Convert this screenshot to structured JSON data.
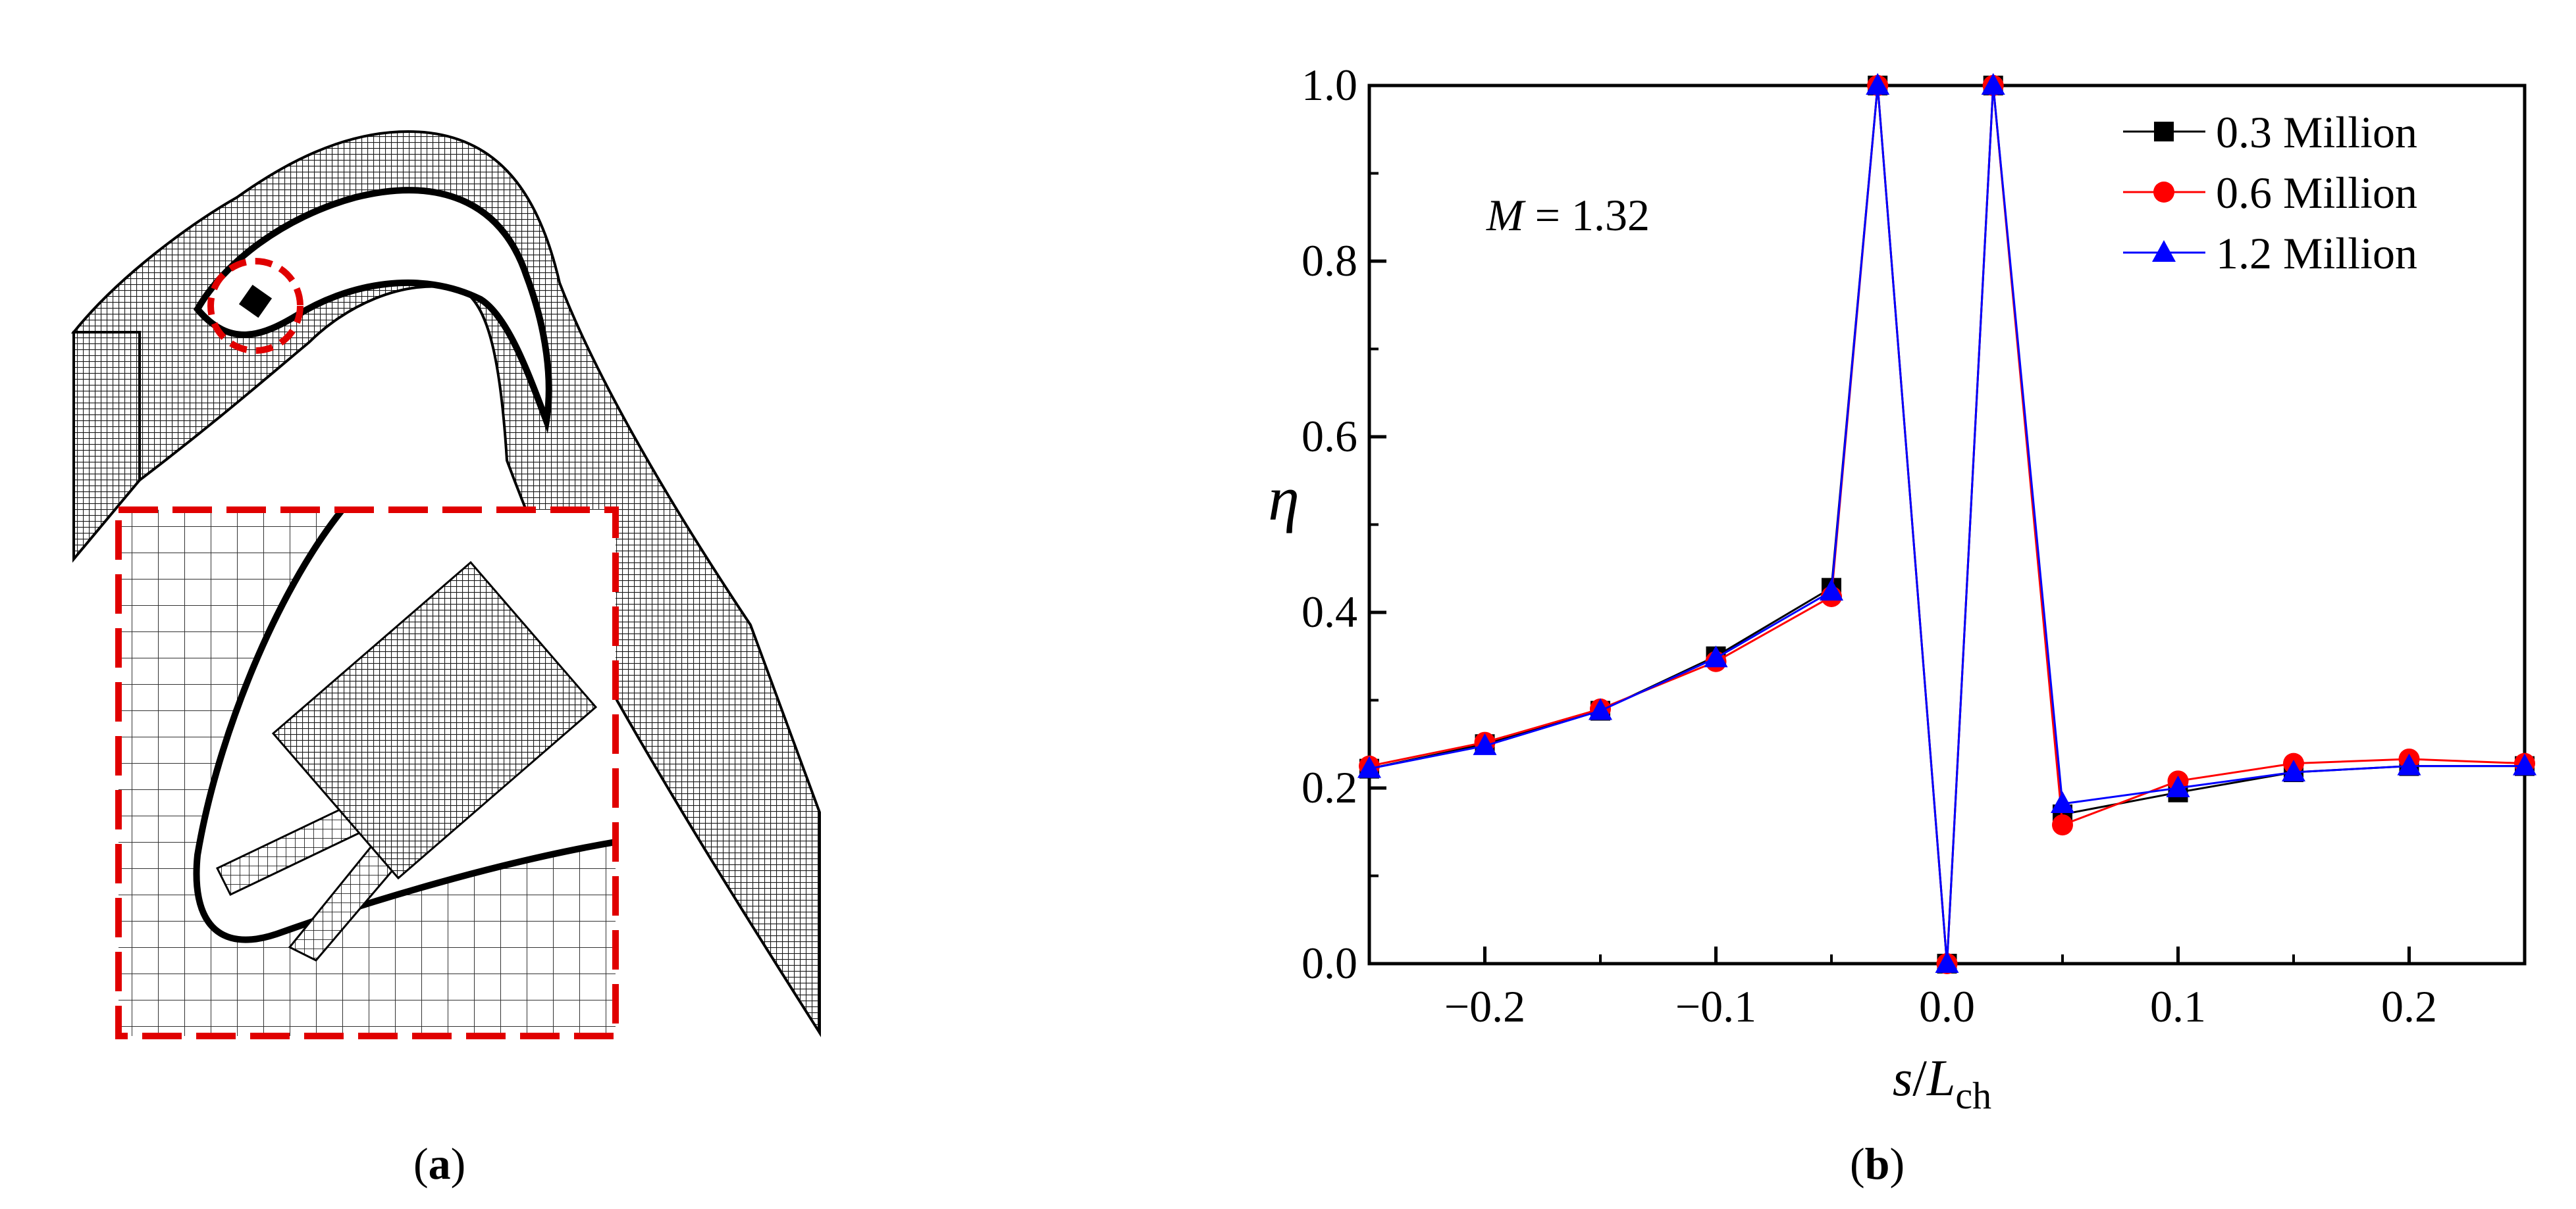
{
  "panel_a": {
    "label_open": "(",
    "label_letter": "a",
    "label_close": ")"
  },
  "panel_b": {
    "label_open": "(",
    "label_letter": "b",
    "label_close": ")"
  },
  "colors": {
    "series_0": "#000000",
    "series_1": "#ff0000",
    "series_2": "#0000ff",
    "inset_border": "#e00000"
  },
  "chart_data": {
    "type": "line",
    "annotation": {
      "italic": "M",
      "rest": " = 1.32"
    },
    "xlabel": {
      "italic": "s",
      "slash": "/",
      "italic2": "L",
      "sub": "ch"
    },
    "ylabel": "η",
    "xlim": [
      -0.25,
      0.25
    ],
    "ylim": [
      0.0,
      1.0
    ],
    "x_ticks": [
      -0.2,
      -0.1,
      0.0,
      0.1,
      0.2
    ],
    "x_tick_labels": [
      "−0.2",
      "−0.1",
      "0.0",
      "0.1",
      "0.2"
    ],
    "y_ticks": [
      0.0,
      0.2,
      0.4,
      0.6,
      0.8,
      1.0
    ],
    "y_tick_labels": [
      "0.0",
      "0.2",
      "0.4",
      "0.6",
      "0.8",
      "1.0"
    ],
    "legend_position": "top-right",
    "series": [
      {
        "name": "0.3 Million",
        "marker": "square",
        "x": [
          -0.25,
          -0.2,
          -0.15,
          -0.1,
          -0.05,
          -0.03,
          0.0,
          0.02,
          0.05,
          0.1,
          0.15,
          0.2,
          0.25
        ],
        "y": [
          0.222,
          0.25,
          0.288,
          0.35,
          0.428,
          1.0,
          0.0,
          1.0,
          0.17,
          0.195,
          0.218,
          0.225,
          0.225
        ]
      },
      {
        "name": "0.6 Million",
        "marker": "circle",
        "x": [
          -0.25,
          -0.2,
          -0.15,
          -0.1,
          -0.05,
          -0.03,
          0.0,
          0.02,
          0.05,
          0.1,
          0.15,
          0.2,
          0.25
        ],
        "y": [
          0.225,
          0.252,
          0.29,
          0.344,
          0.418,
          1.0,
          0.0,
          1.0,
          0.158,
          0.208,
          0.228,
          0.233,
          0.228
        ]
      },
      {
        "name": "1.2 Million",
        "marker": "triangle",
        "x": [
          -0.25,
          -0.2,
          -0.15,
          -0.1,
          -0.05,
          -0.03,
          0.0,
          0.02,
          0.05,
          0.1,
          0.15,
          0.2,
          0.25
        ],
        "y": [
          0.222,
          0.248,
          0.288,
          0.348,
          0.424,
          1.0,
          0.0,
          1.0,
          0.182,
          0.2,
          0.218,
          0.225,
          0.225
        ]
      }
    ]
  }
}
